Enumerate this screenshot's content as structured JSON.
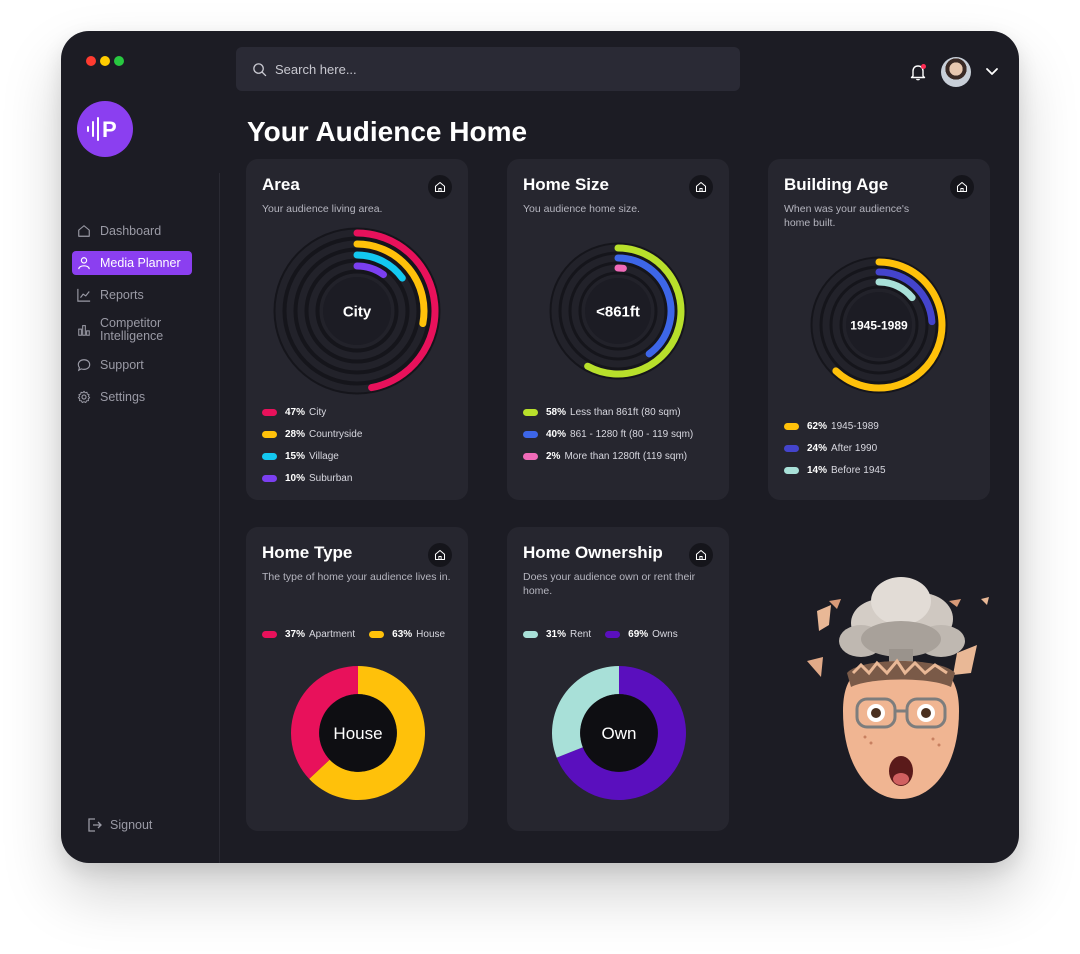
{
  "app": {
    "title": "Your Audience Home",
    "logo_text": "P"
  },
  "sidebar": {
    "items": [
      {
        "label": "Dashboard",
        "icon": "home-icon",
        "active": false
      },
      {
        "label": "Media Planner",
        "icon": "user-icon",
        "active": true
      },
      {
        "label": "Reports",
        "icon": "line-chart-icon",
        "active": false
      },
      {
        "label": "Competitor Intelligence",
        "icon": "bar-chart-icon",
        "active": false
      },
      {
        "label": "Support",
        "icon": "chat-bubble-icon",
        "active": false
      },
      {
        "label": "Settings",
        "icon": "gear-icon",
        "active": false
      }
    ],
    "signout_label": "Signout"
  },
  "search": {
    "placeholder": "Search here..."
  },
  "colors": {
    "accent": "#8b3ff0",
    "background": "#1c1c24",
    "card": "#26262f"
  },
  "cards": {
    "area": {
      "title": "Area",
      "subtitle": "Your audience living area.",
      "center_label": "City"
    },
    "home_size": {
      "title": "Home Size",
      "subtitle": "You audience home size.",
      "center_label": "<861ft"
    },
    "building_age": {
      "title": "Building Age",
      "subtitle": "When was your audience's home built.",
      "center_label": "1945-1989"
    },
    "home_type": {
      "title": "Home Type",
      "subtitle": "The type of home your audience lives in.",
      "center_label": "House"
    },
    "home_ownership": {
      "title": "Home Ownership",
      "subtitle": "Does your audience own or rent their home.",
      "center_label": "Own"
    }
  },
  "chart_data": [
    {
      "type": "pie",
      "title": "Area",
      "categories": [
        "City",
        "Countryside",
        "Village",
        "Suburban"
      ],
      "values": [
        47,
        28,
        15,
        10
      ],
      "value_labels": [
        "47%",
        "28%",
        "15%",
        "10%"
      ],
      "colors": [
        "#e8115b",
        "#ffc10a",
        "#13c8f0",
        "#7b3ff0"
      ]
    },
    {
      "type": "pie",
      "title": "Home Size",
      "categories": [
        "Less than 861ft (80 sqm)",
        "861 - 1280 ft (80 - 119 sqm)",
        "More than 1280ft (119 sqm)"
      ],
      "values": [
        58,
        40,
        2
      ],
      "value_labels": [
        "58%",
        "40%",
        "2%"
      ],
      "colors": [
        "#b8e02b",
        "#3d66e8",
        "#f06ab8"
      ]
    },
    {
      "type": "pie",
      "title": "Building Age",
      "categories": [
        "1945-1989",
        "After 1990",
        "Before 1945"
      ],
      "values": [
        62,
        24,
        14
      ],
      "value_labels": [
        "62%",
        "24%",
        "14%"
      ],
      "colors": [
        "#ffc10a",
        "#4444cc",
        "#a8e0d8"
      ]
    },
    {
      "type": "pie",
      "title": "Home Type",
      "categories": [
        "Apartment",
        "House"
      ],
      "values": [
        37,
        63
      ],
      "value_labels": [
        "37%",
        "63%"
      ],
      "colors": [
        "#e8115b",
        "#ffc10a"
      ]
    },
    {
      "type": "pie",
      "title": "Home Ownership",
      "categories": [
        "Rent",
        "Owns"
      ],
      "values": [
        31,
        69
      ],
      "value_labels": [
        "31%",
        "69%"
      ],
      "colors": [
        "#a8e0d8",
        "#5a0fbe"
      ]
    }
  ]
}
